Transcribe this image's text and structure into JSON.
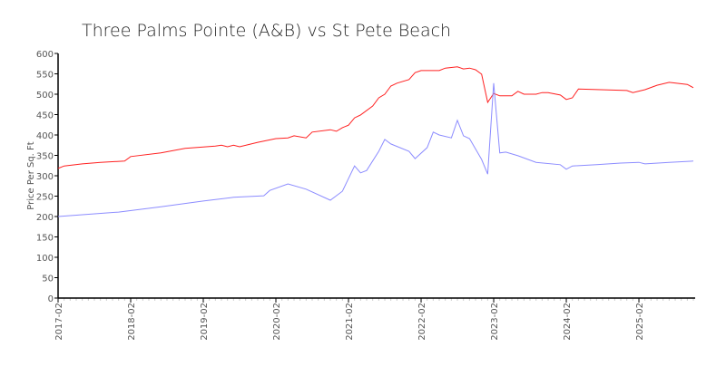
{
  "chart_data": {
    "type": "line",
    "title": "Three Palms Pointe (A&B) vs St Pete Beach",
    "xlabel": "",
    "ylabel": "Price Per Sq. Ft",
    "ylim": [
      0,
      600
    ],
    "yticks": [
      0,
      50,
      100,
      150,
      200,
      250,
      300,
      350,
      400,
      450,
      500,
      550,
      600
    ],
    "xticks": [
      "2017-02",
      "2018-02",
      "2019-02",
      "2020-02",
      "2021-02",
      "2022-02",
      "2023-02",
      "2024-02",
      "2025-02"
    ],
    "xrange": [
      "2017-02",
      "2025-11"
    ],
    "grid": false,
    "legend": "none",
    "series": [
      {
        "color": "#ff2020",
        "x": [
          "2017-02",
          "2017-03",
          "2017-06",
          "2017-09",
          "2018-01",
          "2018-02",
          "2018-07",
          "2018-11",
          "2019-04",
          "2019-05",
          "2019-06",
          "2019-07",
          "2019-08",
          "2019-11",
          "2020-02",
          "2020-04",
          "2020-05",
          "2020-07",
          "2020-08",
          "2020-11",
          "2020-12",
          "2021-01",
          "2021-02",
          "2021-03",
          "2021-04",
          "2021-06",
          "2021-07",
          "2021-08",
          "2021-09",
          "2021-10",
          "2021-12",
          "2022-01",
          "2022-02",
          "2022-05",
          "2022-06",
          "2022-08",
          "2022-09",
          "2022-10",
          "2022-11",
          "2022-12",
          "2023-01",
          "2023-02",
          "2023-03",
          "2023-05",
          "2023-06",
          "2023-07",
          "2023-09",
          "2023-10",
          "2023-11",
          "2024-01",
          "2024-02",
          "2024-03",
          "2024-04",
          "2024-12",
          "2025-01",
          "2025-03",
          "2025-05",
          "2025-07",
          "2025-10",
          "2025-11"
        ],
        "y": [
          318,
          324,
          329,
          333,
          336,
          347,
          356,
          367,
          373,
          375,
          371,
          375,
          371,
          382,
          391,
          393,
          398,
          393,
          407,
          413,
          409,
          418,
          424,
          442,
          449,
          471,
          491,
          500,
          520,
          527,
          536,
          553,
          558,
          558,
          564,
          567,
          562,
          564,
          560,
          549,
          480,
          502,
          496,
          496,
          507,
          500,
          500,
          504,
          504,
          498,
          487,
          491,
          513,
          509,
          504,
          511,
          522,
          529,
          524,
          516
        ]
      },
      {
        "color": "#8c8cff",
        "x": [
          "2017-02",
          "2017-12",
          "2018-07",
          "2019-02",
          "2019-07",
          "2019-12",
          "2020-01",
          "2020-04",
          "2020-07",
          "2020-11",
          "2021-01",
          "2021-03",
          "2021-04",
          "2021-05",
          "2021-07",
          "2021-08",
          "2021-09",
          "2021-12",
          "2022-01",
          "2022-03",
          "2022-04",
          "2022-05",
          "2022-07",
          "2022-08",
          "2022-09",
          "2022-10",
          "2022-12",
          "2023-01",
          "2023-02",
          "2023-03",
          "2023-04",
          "2023-06",
          "2023-09",
          "2024-01",
          "2024-02",
          "2024-03",
          "2024-07",
          "2024-11",
          "2025-02",
          "2025-03",
          "2025-07",
          "2025-11"
        ],
        "y": [
          200,
          211,
          224,
          238,
          247,
          251,
          264,
          280,
          267,
          240,
          262,
          324,
          307,
          313,
          360,
          389,
          378,
          360,
          342,
          369,
          407,
          400,
          393,
          436,
          398,
          391,
          340,
          304,
          527,
          356,
          358,
          349,
          333,
          327,
          316,
          324,
          327,
          331,
          333,
          329,
          333,
          336
        ]
      }
    ]
  }
}
